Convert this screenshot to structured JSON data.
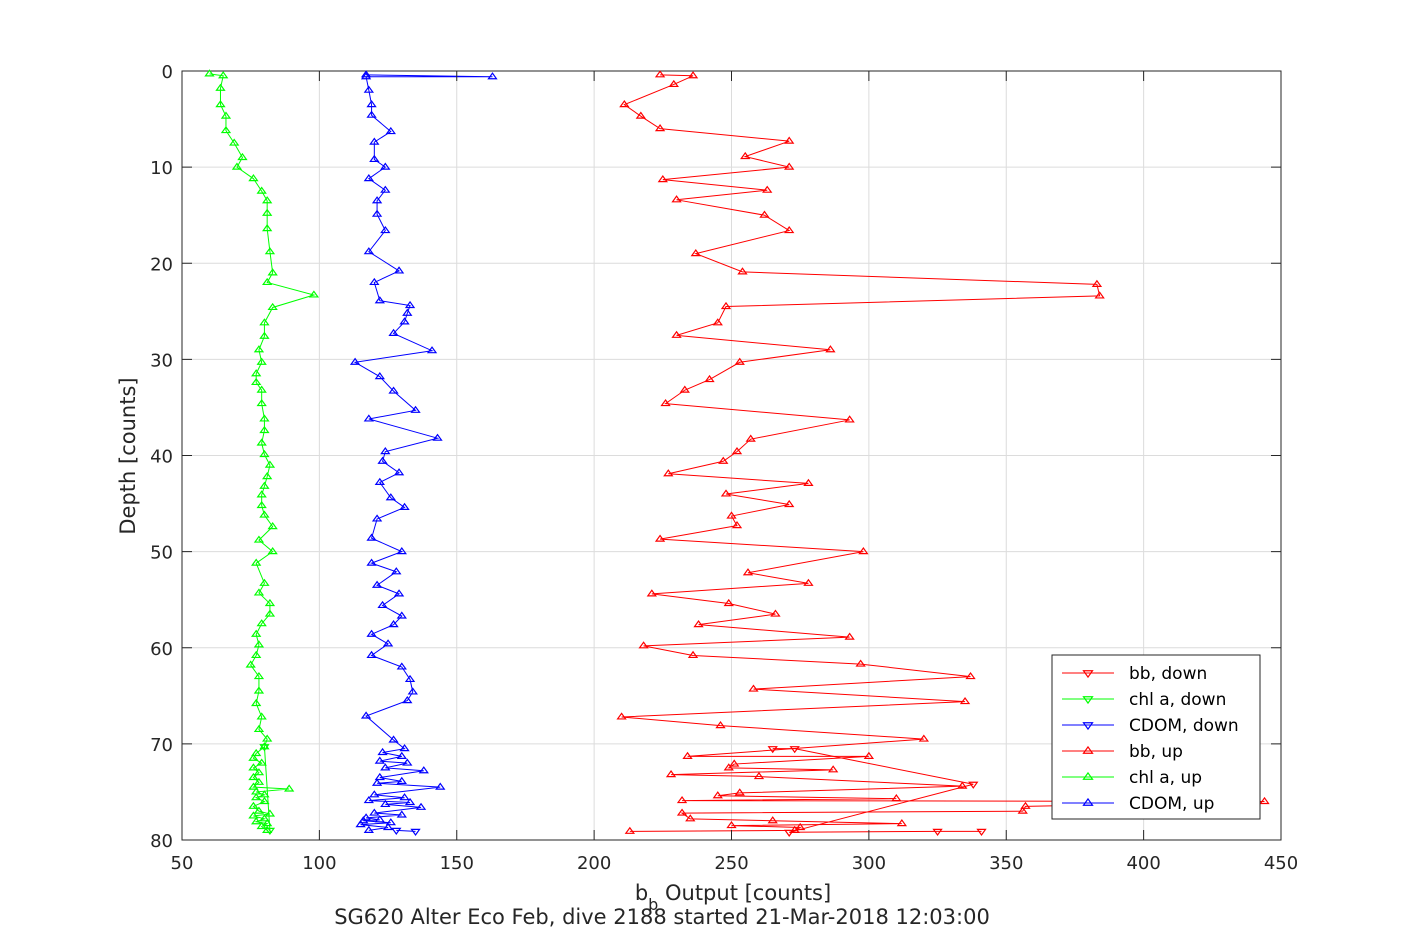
{
  "chart_data": {
    "type": "line",
    "title": "SG620 Alter Eco Feb, dive 2188 started 21-Mar-2018 12:03:00",
    "xlabel": {
      "main": "b",
      "sub": "b",
      "rest": " Output [counts]"
    },
    "ylabel": "Depth [counts]",
    "xlim": [
      50,
      450
    ],
    "ylim": [
      0,
      80
    ],
    "y_reversed": true,
    "grid": true,
    "legend_position": "bottom-right",
    "x_ticks": [
      50,
      100,
      150,
      200,
      250,
      300,
      350,
      400,
      450
    ],
    "y_ticks": [
      0,
      10,
      20,
      30,
      40,
      50,
      60,
      70,
      80
    ],
    "x_tick_labels": [
      "50",
      "100",
      "150",
      "200",
      "250",
      "300",
      "350",
      "400",
      "450"
    ],
    "y_tick_labels": [
      "0",
      "10",
      "20",
      "30",
      "40",
      "50",
      "60",
      "70",
      "80"
    ],
    "colors": {
      "bb": "#ff0000",
      "chl": "#00ff00",
      "cdom": "#0000ff"
    },
    "series": [
      {
        "name": "bb, down",
        "color": "#ff0000",
        "marker": "triangle-down",
        "points": [
          [
            265,
            70.5
          ],
          [
            273,
            70.5
          ],
          [
            338,
            74.2
          ],
          [
            271,
            79.2
          ],
          [
            325,
            79.1
          ],
          [
            341,
            79.1
          ]
        ]
      },
      {
        "name": "chl a, down",
        "color": "#00ff00",
        "marker": "triangle-down",
        "points": [
          [
            80,
            70.3
          ],
          [
            82,
            79.0
          ]
        ]
      },
      {
        "name": "CDOM, down",
        "color": "#0000ff",
        "marker": "triangle-down",
        "points": [
          [
            128,
            79.0
          ],
          [
            135,
            79.1
          ]
        ]
      },
      {
        "name": "bb, up",
        "color": "#ff0000",
        "marker": "triangle-up",
        "points": [
          [
            213,
            79.1
          ],
          [
            273,
            79.0
          ],
          [
            275,
            78.7
          ],
          [
            250,
            78.5
          ],
          [
            312,
            78.3
          ],
          [
            265,
            78.0
          ],
          [
            235,
            77.8
          ],
          [
            232,
            77.2
          ],
          [
            356,
            77.0
          ],
          [
            357,
            76.5
          ],
          [
            444,
            76.0
          ],
          [
            232,
            75.9
          ],
          [
            310,
            75.7
          ],
          [
            245,
            75.4
          ],
          [
            253,
            75.1
          ],
          [
            334,
            74.4
          ],
          [
            260,
            73.4
          ],
          [
            228,
            73.2
          ],
          [
            287,
            72.7
          ],
          [
            249,
            72.5
          ],
          [
            251,
            72.1
          ],
          [
            300,
            71.3
          ],
          [
            234,
            71.3
          ],
          [
            320,
            69.5
          ],
          [
            246,
            68.1
          ],
          [
            210,
            67.2
          ],
          [
            335,
            65.6
          ],
          [
            258,
            64.3
          ],
          [
            337,
            63.0
          ],
          [
            297,
            61.7
          ],
          [
            236,
            60.8
          ],
          [
            218,
            59.8
          ],
          [
            293,
            58.9
          ],
          [
            238,
            57.6
          ],
          [
            266,
            56.5
          ],
          [
            249,
            55.4
          ],
          [
            221,
            54.4
          ],
          [
            278,
            53.3
          ],
          [
            256,
            52.2
          ],
          [
            298,
            50.0
          ],
          [
            224,
            48.7
          ],
          [
            252,
            47.3
          ],
          [
            250,
            46.3
          ],
          [
            271,
            45.1
          ],
          [
            248,
            44.0
          ],
          [
            278,
            42.9
          ],
          [
            227,
            41.9
          ],
          [
            247,
            40.6
          ],
          [
            252,
            39.6
          ],
          [
            257,
            38.3
          ],
          [
            293,
            36.3
          ],
          [
            226,
            34.6
          ],
          [
            233,
            33.2
          ],
          [
            242,
            32.1
          ],
          [
            253,
            30.3
          ],
          [
            286,
            29.0
          ],
          [
            230,
            27.5
          ],
          [
            245,
            26.2
          ],
          [
            248,
            24.5
          ],
          [
            384,
            23.4
          ],
          [
            383,
            22.2
          ],
          [
            254,
            20.9
          ],
          [
            237,
            19.0
          ],
          [
            271,
            16.6
          ],
          [
            262,
            15.0
          ],
          [
            230,
            13.4
          ],
          [
            263,
            12.4
          ],
          [
            225,
            11.3
          ],
          [
            271,
            10.0
          ],
          [
            255,
            8.9
          ],
          [
            271,
            7.3
          ],
          [
            224,
            6.0
          ],
          [
            217,
            4.7
          ],
          [
            211,
            3.5
          ],
          [
            229,
            1.4
          ],
          [
            236,
            0.5
          ],
          [
            224,
            0.4
          ]
        ]
      },
      {
        "name": "chl a, up",
        "color": "#00ff00",
        "marker": "triangle-up",
        "points": [
          [
            81,
            79.0
          ],
          [
            79,
            78.6
          ],
          [
            81,
            78.3
          ],
          [
            77,
            78.1
          ],
          [
            80,
            77.8
          ],
          [
            76,
            77.5
          ],
          [
            82,
            77.3
          ],
          [
            78,
            77.0
          ],
          [
            76,
            76.5
          ],
          [
            80,
            76.0
          ],
          [
            77,
            75.6
          ],
          [
            80,
            75.3
          ],
          [
            77,
            75.0
          ],
          [
            89,
            74.7
          ],
          [
            76,
            74.5
          ],
          [
            78,
            74.0
          ],
          [
            76,
            73.5
          ],
          [
            78,
            73.0
          ],
          [
            76,
            72.5
          ],
          [
            79,
            72.0
          ],
          [
            76,
            71.5
          ],
          [
            77,
            71.0
          ],
          [
            80,
            70.3
          ],
          [
            81,
            69.5
          ],
          [
            78,
            68.5
          ],
          [
            79,
            67.2
          ],
          [
            77,
            65.8
          ],
          [
            78,
            64.5
          ],
          [
            78,
            63.0
          ],
          [
            75,
            61.8
          ],
          [
            77,
            60.8
          ],
          [
            78,
            59.7
          ],
          [
            77,
            58.6
          ],
          [
            79,
            57.5
          ],
          [
            82,
            56.5
          ],
          [
            82,
            55.4
          ],
          [
            78,
            54.3
          ],
          [
            80,
            53.3
          ],
          [
            77,
            51.2
          ],
          [
            83,
            50.0
          ],
          [
            78,
            48.8
          ],
          [
            83,
            47.4
          ],
          [
            80,
            46.2
          ],
          [
            79,
            45.2
          ],
          [
            79,
            44.1
          ],
          [
            80,
            43.2
          ],
          [
            81,
            42.2
          ],
          [
            82,
            41.0
          ],
          [
            80,
            39.9
          ],
          [
            79,
            38.7
          ],
          [
            80,
            37.4
          ],
          [
            80,
            36.2
          ],
          [
            79,
            34.6
          ],
          [
            79,
            33.2
          ],
          [
            77,
            32.4
          ],
          [
            77,
            31.5
          ],
          [
            79,
            30.3
          ],
          [
            78,
            29.0
          ],
          [
            80,
            27.6
          ],
          [
            80,
            26.2
          ],
          [
            83,
            24.6
          ],
          [
            98,
            23.3
          ],
          [
            81,
            22.0
          ],
          [
            83,
            21.0
          ],
          [
            82,
            18.8
          ],
          [
            81,
            16.4
          ],
          [
            81,
            14.8
          ],
          [
            81,
            13.5
          ],
          [
            79,
            12.5
          ],
          [
            76,
            11.2
          ],
          [
            70,
            10.0
          ],
          [
            72,
            9.0
          ],
          [
            69,
            7.5
          ],
          [
            66,
            6.2
          ],
          [
            66,
            4.7
          ],
          [
            64,
            3.5
          ],
          [
            64,
            1.8
          ],
          [
            65,
            0.5
          ],
          [
            60,
            0.3
          ]
        ]
      },
      {
        "name": "CDOM, up",
        "color": "#0000ff",
        "marker": "triangle-up",
        "points": [
          [
            118,
            79.0
          ],
          [
            125,
            78.7
          ],
          [
            115,
            78.4
          ],
          [
            126,
            78.2
          ],
          [
            116,
            78.0
          ],
          [
            122,
            77.9
          ],
          [
            117,
            77.7
          ],
          [
            130,
            77.4
          ],
          [
            120,
            77.2
          ],
          [
            137,
            76.6
          ],
          [
            124,
            76.3
          ],
          [
            133,
            76.1
          ],
          [
            118,
            75.9
          ],
          [
            131,
            75.6
          ],
          [
            120,
            75.3
          ],
          [
            144,
            74.5
          ],
          [
            121,
            74.1
          ],
          [
            130,
            73.9
          ],
          [
            122,
            73.5
          ],
          [
            138,
            72.8
          ],
          [
            124,
            72.5
          ],
          [
            132,
            72.0
          ],
          [
            122,
            71.8
          ],
          [
            130,
            71.3
          ],
          [
            123,
            70.9
          ],
          [
            131,
            70.5
          ],
          [
            127,
            69.6
          ],
          [
            117,
            67.1
          ],
          [
            132,
            65.5
          ],
          [
            134,
            64.6
          ],
          [
            133,
            63.3
          ],
          [
            130,
            62.0
          ],
          [
            119,
            60.8
          ],
          [
            125,
            59.6
          ],
          [
            119,
            58.6
          ],
          [
            127,
            57.6
          ],
          [
            130,
            56.7
          ],
          [
            123,
            55.6
          ],
          [
            129,
            54.4
          ],
          [
            121,
            53.5
          ],
          [
            128,
            52.1
          ],
          [
            119,
            51.2
          ],
          [
            130,
            50.0
          ],
          [
            119,
            48.6
          ],
          [
            121,
            46.6
          ],
          [
            131,
            45.4
          ],
          [
            126,
            44.4
          ],
          [
            122,
            42.8
          ],
          [
            129,
            41.8
          ],
          [
            123,
            40.6
          ],
          [
            124,
            39.6
          ],
          [
            143,
            38.2
          ],
          [
            118,
            36.2
          ],
          [
            135,
            35.3
          ],
          [
            127,
            33.3
          ],
          [
            122,
            31.8
          ],
          [
            113,
            30.3
          ],
          [
            141,
            29.1
          ],
          [
            127,
            27.3
          ],
          [
            131,
            26.1
          ],
          [
            132,
            25.2
          ],
          [
            133,
            24.4
          ],
          [
            122,
            23.9
          ],
          [
            120,
            22.0
          ],
          [
            129,
            20.8
          ],
          [
            118,
            18.8
          ],
          [
            124,
            16.6
          ],
          [
            121,
            14.9
          ],
          [
            121,
            13.5
          ],
          [
            124,
            12.4
          ],
          [
            118,
            11.2
          ],
          [
            124,
            10.0
          ],
          [
            120,
            9.2
          ],
          [
            120,
            7.4
          ],
          [
            126,
            6.3
          ],
          [
            119,
            4.6
          ],
          [
            119,
            3.5
          ],
          [
            118,
            2.0
          ],
          [
            117,
            0.6
          ],
          [
            163,
            0.6
          ],
          [
            117,
            0.4
          ]
        ]
      }
    ]
  }
}
